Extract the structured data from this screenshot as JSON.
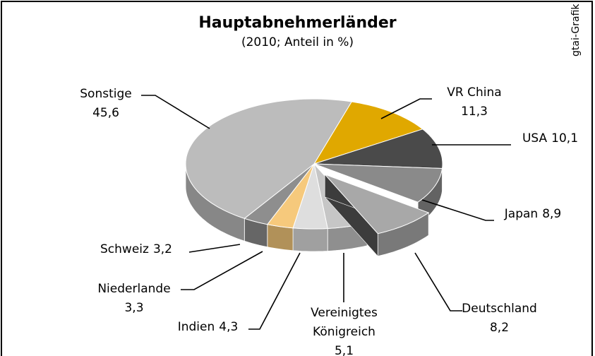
{
  "chart_data": {
    "type": "pie3d",
    "title": "Hauptabnehmerländer",
    "subtitle": "(2010; Anteil in %)",
    "source": "gtai-Grafik",
    "categories": [
      "VR China",
      "USA",
      "Japan",
      "Deutschland",
      "Vereinigtes Königreich",
      "Indien",
      "Niederlande",
      "Schweiz",
      "Sonstige"
    ],
    "values": [
      11.3,
      10.1,
      8.9,
      8.2,
      5.1,
      4.3,
      3.3,
      3.2,
      45.6
    ],
    "value_labels": [
      "11,3",
      "10,1",
      "8,9",
      "8,2",
      "5,1",
      "4,3",
      "3,3",
      "3,2",
      "45,6"
    ],
    "colors": [
      "#e0a800",
      "#4a4a4a",
      "#8a8a8a",
      "#a8a8a8",
      "#c6c6c6",
      "#dedede",
      "#f6c97c",
      "#8e8e8e",
      "#bcbcbc"
    ]
  }
}
